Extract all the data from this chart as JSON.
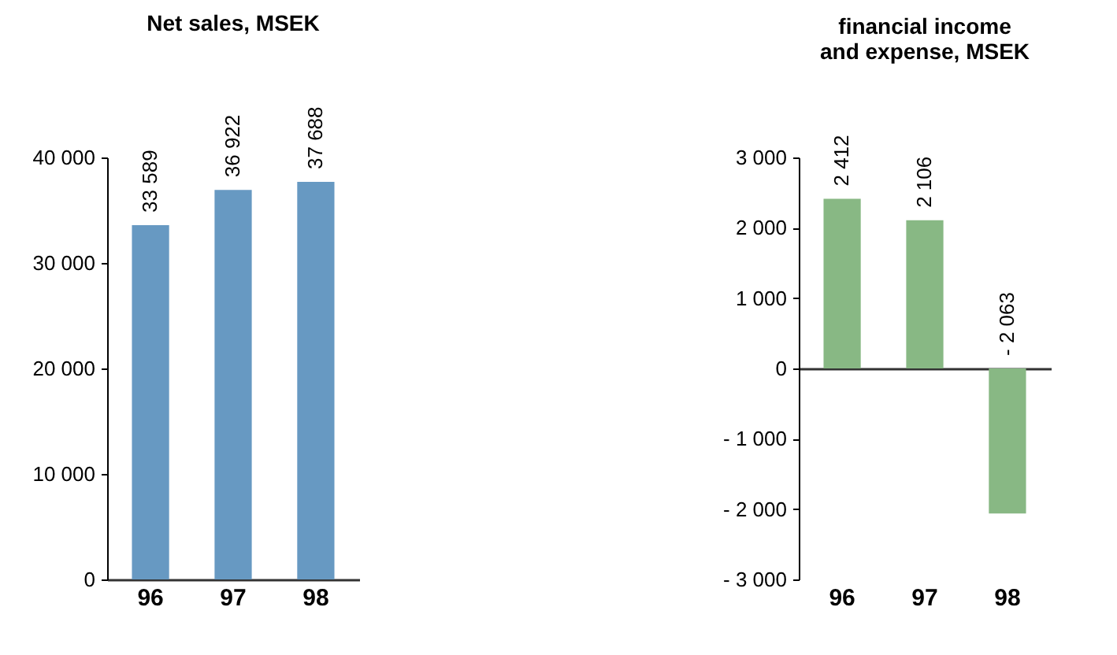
{
  "chart_data": [
    {
      "type": "bar",
      "title": "Net sales, MSEK",
      "categories": [
        "96",
        "97",
        "98"
      ],
      "values": [
        33589,
        36922,
        37688
      ],
      "color": "#6799c2",
      "value_labels": [
        "33 589",
        "36 922",
        "37 688"
      ],
      "ylim": [
        0,
        40000
      ],
      "yticks": [
        0,
        {
          "value": 10000,
          "label": "10 000"
        },
        {
          "value": 20000,
          "label": "20 000"
        },
        {
          "value": 30000,
          "label": "30 000"
        },
        {
          "value": 40000,
          "label": "40 000"
        }
      ]
    },
    {
      "type": "bar",
      "title": "financial income\nand expense, MSEK",
      "categories": [
        "96",
        "97",
        "98"
      ],
      "values": [
        2412,
        2106,
        -2063
      ],
      "color": "#88b884",
      "value_labels": [
        "2 412",
        "2 106",
        "- 2 063"
      ],
      "ylim": [
        -3000,
        3000
      ],
      "yticks": [
        {
          "value": -3000,
          "label": "- 3 000"
        },
        {
          "value": -2000,
          "label": "- 2 000"
        },
        {
          "value": -1000,
          "label": "- 1 000"
        },
        0,
        {
          "value": 1000,
          "label": "1 000"
        },
        {
          "value": 2000,
          "label": "2 000"
        },
        {
          "value": 3000,
          "label": "3 000"
        }
      ]
    }
  ]
}
